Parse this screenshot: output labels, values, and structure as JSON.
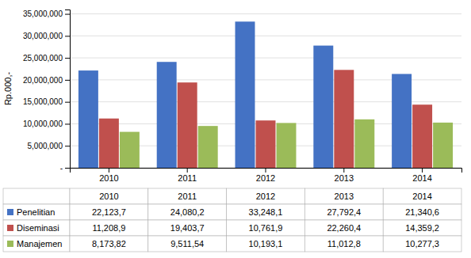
{
  "chart_data": {
    "type": "bar",
    "ylabel": "Rp.000,-",
    "categories": [
      "2010",
      "2011",
      "2012",
      "2013",
      "2014"
    ],
    "series": [
      {
        "name": "Penelitian",
        "color": "#4472C4",
        "values": [
          22123700,
          24080200,
          33248100,
          27792400,
          21340600
        ],
        "value_labels": [
          "22,123,7",
          "24,080,2",
          "33,248,1",
          "27,792,4",
          "21,340,6"
        ]
      },
      {
        "name": "Diseminasi",
        "color": "#C0504D",
        "values": [
          11208900,
          19403700,
          10761900,
          22260400,
          14359200
        ],
        "value_labels": [
          "11,208,9",
          "19,403,7",
          "10,761,9",
          "22,260,4",
          "14,359,2"
        ]
      },
      {
        "name": "Manajemen",
        "color": "#9BBB59",
        "values": [
          8173820,
          9511540,
          10193100,
          11012800,
          10277300
        ],
        "value_labels": [
          "8,173,82",
          "9,511,54",
          "10,193,1",
          "11,012,8",
          "10,277,3"
        ]
      }
    ],
    "ylim": [
      0,
      36000000
    ],
    "yticks": [
      {
        "value": 0,
        "label": "-"
      },
      {
        "value": 5000000,
        "label": "5,000,000"
      },
      {
        "value": 10000000,
        "label": "10,000,000"
      },
      {
        "value": 15000000,
        "label": "15,000,000"
      },
      {
        "value": 20000000,
        "label": "20,000,000"
      },
      {
        "value": 25000000,
        "label": "25,000,000"
      },
      {
        "value": 30000000,
        "label": "30,000,000"
      },
      {
        "value": 35000000,
        "label": "35,000,000"
      }
    ],
    "grid": true
  }
}
